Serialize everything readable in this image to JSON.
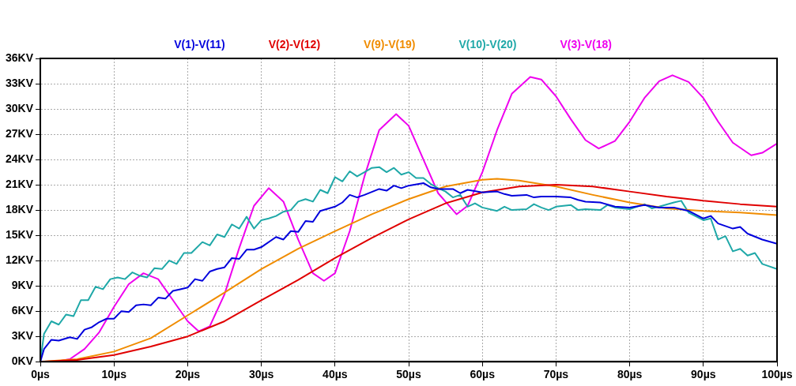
{
  "chart_data": {
    "type": "line",
    "legend": "top",
    "grid": true,
    "line_style": "solid",
    "marker": "none",
    "xlim": [
      0,
      100
    ],
    "ylim": [
      0,
      36
    ],
    "xticks": [
      {
        "value": 0,
        "label": "0µs"
      },
      {
        "value": 10,
        "label": "10µs"
      },
      {
        "value": 20,
        "label": "20µs"
      },
      {
        "value": 30,
        "label": "30µs"
      },
      {
        "value": 40,
        "label": "40µs"
      },
      {
        "value": 50,
        "label": "50µs"
      },
      {
        "value": 60,
        "label": "60µs"
      },
      {
        "value": 70,
        "label": "70µs"
      },
      {
        "value": 80,
        "label": "80µs"
      },
      {
        "value": 90,
        "label": "90µs"
      },
      {
        "value": 100,
        "label": "100µs"
      }
    ],
    "yticks": [
      {
        "value": 0,
        "label": "0KV"
      },
      {
        "value": 3,
        "label": "3KV"
      },
      {
        "value": 6,
        "label": "6KV"
      },
      {
        "value": 9,
        "label": "9KV"
      },
      {
        "value": 12,
        "label": "12KV"
      },
      {
        "value": 15,
        "label": "15KV"
      },
      {
        "value": 18,
        "label": "18KV"
      },
      {
        "value": 21,
        "label": "21KV"
      },
      {
        "value": 24,
        "label": "24KV"
      },
      {
        "value": 27,
        "label": "27KV"
      },
      {
        "value": 30,
        "label": "30KV"
      },
      {
        "value": 33,
        "label": "33KV"
      },
      {
        "value": 36,
        "label": "36KV"
      }
    ],
    "series": [
      {
        "name": "V(1)-V(11)",
        "color": "#0000dd",
        "x": [
          0,
          0.5,
          1.5,
          2.5,
          4,
          5,
          6,
          7,
          8,
          9,
          10,
          11,
          12,
          13,
          14,
          15,
          16,
          17,
          18,
          19,
          20,
          21,
          22,
          23,
          24,
          25,
          26,
          27,
          28,
          29,
          30,
          32,
          33,
          34,
          35,
          36,
          37,
          38,
          40,
          41,
          42,
          43,
          44,
          46,
          47,
          48,
          49,
          50,
          52,
          53,
          54,
          56,
          57,
          58,
          60,
          62,
          63,
          64,
          66,
          67,
          68,
          70,
          72,
          73,
          74,
          76,
          78,
          80,
          82,
          84,
          86,
          88,
          90,
          91,
          92,
          94,
          95,
          96,
          98,
          100
        ],
        "values": [
          0,
          1.5,
          2.6,
          2.5,
          2.9,
          2.7,
          3.8,
          4.1,
          4.7,
          5.1,
          5.1,
          6.0,
          5.9,
          6.7,
          6.8,
          6.7,
          7.6,
          7.5,
          8.4,
          8.6,
          8.8,
          9.8,
          9.6,
          10.7,
          11.0,
          11.2,
          12.3,
          12.2,
          13.3,
          13.3,
          13.6,
          14.8,
          14.5,
          15.5,
          15.4,
          16.7,
          16.6,
          17.9,
          18.4,
          18.9,
          19.8,
          19.5,
          19.8,
          20.5,
          20.3,
          20.9,
          20.6,
          20.9,
          21.2,
          20.7,
          20.5,
          20.5,
          20.0,
          20.4,
          20.1,
          20.2,
          19.9,
          19.7,
          19.8,
          19.5,
          19.6,
          19.6,
          19.5,
          19.2,
          19.0,
          18.9,
          18.4,
          18.3,
          18.6,
          18.3,
          18.3,
          17.9,
          17.0,
          17.3,
          16.4,
          15.8,
          16.0,
          15.2,
          14.5,
          14.0
        ]
      },
      {
        "name": "V(2)-V(12)",
        "color": "#e00000",
        "x": [
          0,
          5,
          10,
          15,
          20,
          25,
          30,
          35,
          40,
          45,
          50,
          55,
          60,
          65,
          70,
          75,
          80,
          85,
          90,
          95,
          100
        ],
        "values": [
          0,
          0.2,
          0.8,
          1.8,
          3.0,
          4.8,
          7.3,
          9.7,
          12.3,
          14.7,
          16.9,
          18.8,
          20.1,
          20.8,
          21.0,
          20.8,
          20.2,
          19.6,
          19.1,
          18.7,
          18.4
        ]
      },
      {
        "name": "V(9)-V(19)",
        "color": "#f08c00",
        "x": [
          0,
          5,
          10,
          15,
          20,
          25,
          30,
          35,
          40,
          45,
          50,
          55,
          60,
          62,
          65,
          70,
          75,
          80,
          85,
          90,
          95,
          100
        ],
        "values": [
          0,
          0.3,
          1.2,
          2.8,
          5.5,
          8.2,
          11.0,
          13.4,
          15.5,
          17.5,
          19.3,
          20.8,
          21.6,
          21.7,
          21.5,
          20.8,
          19.8,
          18.9,
          18.2,
          17.9,
          17.7,
          17.4
        ]
      },
      {
        "name": "V(10)-V(20)",
        "color": "#1fa8a8",
        "x": [
          0,
          0.5,
          1.5,
          2.5,
          3.5,
          4.5,
          5.5,
          6.5,
          7.5,
          8.5,
          9.5,
          10.5,
          11.5,
          12.5,
          13.5,
          14.5,
          15.5,
          16.5,
          17.5,
          18.5,
          19.5,
          20.5,
          22,
          23,
          24,
          25,
          26,
          27,
          28,
          29,
          30,
          31,
          32,
          33,
          34,
          35,
          36,
          37,
          38,
          39,
          40,
          41,
          42,
          43,
          44,
          45,
          46,
          47,
          48,
          49,
          50,
          51,
          52,
          53,
          54,
          55,
          56,
          57,
          58,
          59,
          60,
          62,
          63,
          64,
          66,
          67,
          68,
          69,
          70,
          72,
          73,
          74,
          76,
          77,
          78,
          80,
          82,
          83,
          84,
          86,
          87,
          88,
          90,
          91,
          92,
          93,
          94,
          95,
          96,
          97,
          98,
          100
        ],
        "values": [
          0,
          3.3,
          4.8,
          4.4,
          5.6,
          5.4,
          7.3,
          7.3,
          8.9,
          8.6,
          9.8,
          10.0,
          9.8,
          10.6,
          10.2,
          10.0,
          11.1,
          11.0,
          12.0,
          11.6,
          12.9,
          12.9,
          14.2,
          13.8,
          15.1,
          14.8,
          16.3,
          15.8,
          17.2,
          15.8,
          16.8,
          17.0,
          17.3,
          17.8,
          18.0,
          19.0,
          19.3,
          19.0,
          20.4,
          20.0,
          21.9,
          21.4,
          22.6,
          22.0,
          22.5,
          23.0,
          23.1,
          22.5,
          23.0,
          22.2,
          22.5,
          21.8,
          21.8,
          21.1,
          20.6,
          20.2,
          19.5,
          19.8,
          18.4,
          18.8,
          18.3,
          17.9,
          18.4,
          18.0,
          18.1,
          18.7,
          18.3,
          18.0,
          18.4,
          18.6,
          18.0,
          18.1,
          18.0,
          18.6,
          18.3,
          18.1,
          18.7,
          18.2,
          18.4,
          18.9,
          19.1,
          17.7,
          16.8,
          17.0,
          14.5,
          14.9,
          13.1,
          13.4,
          12.6,
          12.9,
          11.6,
          11.0
        ]
      },
      {
        "name": "V(3)-V(18)",
        "color": "#ee00ee",
        "x": [
          0,
          2,
          4,
          6,
          8,
          10,
          12,
          14,
          16,
          18,
          20,
          21.5,
          23,
          25,
          27,
          29,
          31,
          33,
          35,
          37,
          38.5,
          40,
          42,
          44,
          46,
          48.3,
          50,
          52,
          54,
          56.5,
          58,
          60,
          62,
          64,
          66.5,
          68,
          70,
          72,
          74,
          75.8,
          78,
          80,
          82,
          84,
          85.8,
          88,
          90,
          92,
          94,
          96.5,
          98,
          100
        ],
        "values": [
          0,
          0,
          0.3,
          1.5,
          3.5,
          6.5,
          9.2,
          10.5,
          9.8,
          7.3,
          4.8,
          3.6,
          4.2,
          8.0,
          13.5,
          18.5,
          20.6,
          19.0,
          14.5,
          10.5,
          9.6,
          10.5,
          15.5,
          22.0,
          27.5,
          29.4,
          28.0,
          24.0,
          20.0,
          17.5,
          18.5,
          22.5,
          27.5,
          31.8,
          33.8,
          33.5,
          31.5,
          28.8,
          26.3,
          25.3,
          26.2,
          28.5,
          31.3,
          33.3,
          34.0,
          33.2,
          31.3,
          28.5,
          26.0,
          24.5,
          24.8,
          25.9
        ]
      }
    ]
  }
}
